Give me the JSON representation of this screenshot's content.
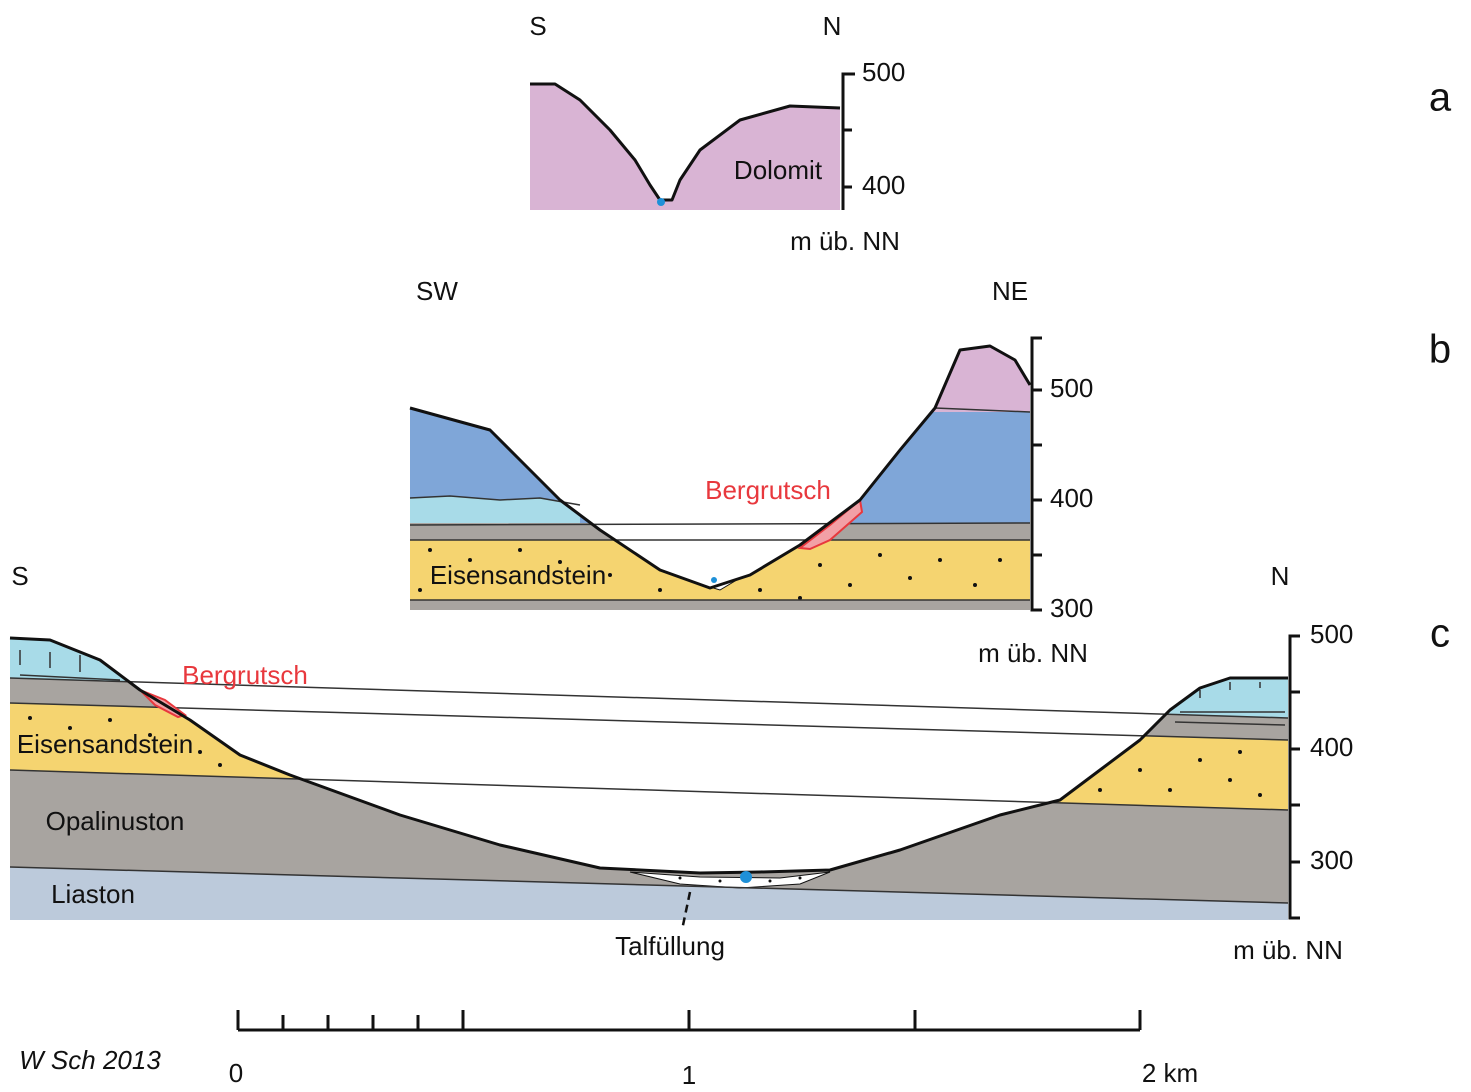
{
  "panels": [
    {
      "label": "a",
      "left": "S",
      "right": "N",
      "ticks": [
        500,
        400
      ],
      "unit": "m üb. NN",
      "layers": [
        "Dolomit"
      ]
    },
    {
      "label": "b",
      "left": "SW",
      "right": "NE",
      "ticks": [
        500,
        400,
        300
      ],
      "unit": "m üb. NN",
      "annotation": "Bergrutsch",
      "layers": [
        "Eisensandstein"
      ]
    },
    {
      "label": "c",
      "left": "S",
      "right": "N",
      "ticks": [
        500,
        400,
        300
      ],
      "unit": "m üb. NN",
      "annotation": "Bergrutsch",
      "layers": [
        "Eisensandstein",
        "Opalinuston",
        "Liaston"
      ],
      "callout": "Talfüllung"
    }
  ],
  "scale": {
    "labels": [
      "0",
      "1",
      "2 km"
    ]
  },
  "credit": "W Sch 2013"
}
